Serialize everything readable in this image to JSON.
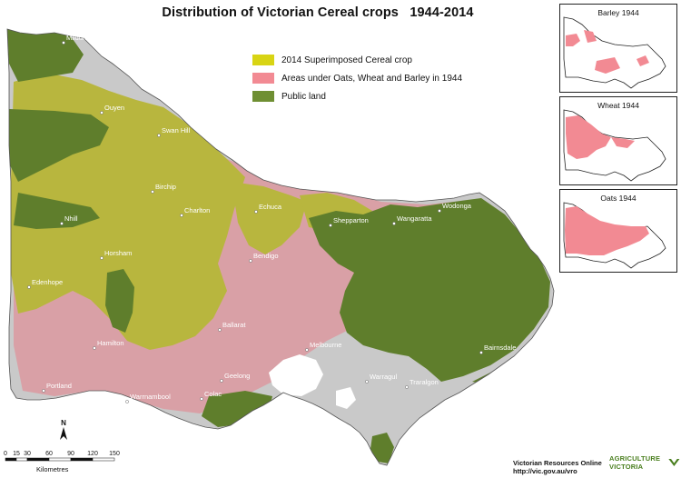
{
  "title": "Distribution of Victorian Cereal crops   1944-2014",
  "legend": [
    {
      "label": "2014 Superimposed Cereal crop",
      "color": "#d8d414"
    },
    {
      "label": "Areas under Oats, Wheat and Barley in 1944",
      "color": "#f28a93"
    },
    {
      "label": "Public land",
      "color": "#6f8f33"
    }
  ],
  "colors": {
    "base": "#c9c9c9",
    "pink": "#d9a0a6",
    "green": "#5f7e2c",
    "cereal": "#b8b63e",
    "water": "#ffffff",
    "inset_fill": "#f28a93"
  },
  "insets": [
    {
      "label": "Barley 1944"
    },
    {
      "label": "Wheat 1944"
    },
    {
      "label": "Oats 1944"
    }
  ],
  "towns": [
    {
      "name": "Mildura"
    },
    {
      "name": "Ouyen"
    },
    {
      "name": "Swan Hill"
    },
    {
      "name": "Birchip"
    },
    {
      "name": "Nhill"
    },
    {
      "name": "Charlton"
    },
    {
      "name": "Echuca"
    },
    {
      "name": "Shepparton"
    },
    {
      "name": "Wangaratta"
    },
    {
      "name": "Wodonga"
    },
    {
      "name": "Horsham"
    },
    {
      "name": "Bendigo"
    },
    {
      "name": "Edenhope"
    },
    {
      "name": "Ballarat"
    },
    {
      "name": "Melbourne"
    },
    {
      "name": "Hamilton"
    },
    {
      "name": "Bairnsdale"
    },
    {
      "name": "Geelong"
    },
    {
      "name": "Warragul"
    },
    {
      "name": "Traralgon"
    },
    {
      "name": "Portland"
    },
    {
      "name": "Warrnambool"
    },
    {
      "name": "Colac"
    }
  ],
  "north_label": "N",
  "scale": {
    "ticks": [
      "0",
      "15",
      "30",
      "60",
      "90",
      "120",
      "150"
    ],
    "unit": "Kilometres"
  },
  "credit": {
    "line1": "Victorian Resources Online",
    "line2": "http://vic.gov.au/vro"
  },
  "logo": {
    "text": "AGRICULTURE VICTORIA"
  }
}
